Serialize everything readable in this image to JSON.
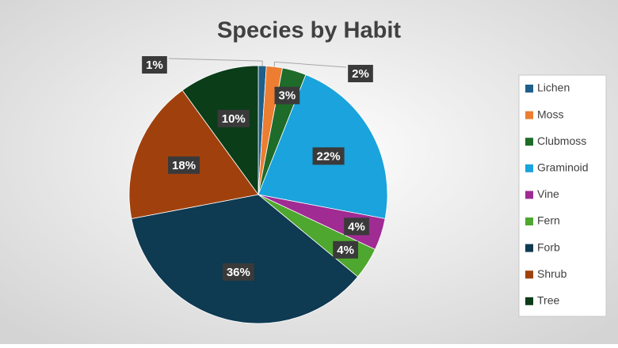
{
  "chart_data": {
    "type": "pie",
    "title": "Species by Habit",
    "categories": [
      "Lichen",
      "Moss",
      "Clubmoss",
      "Graminoid",
      "Vine",
      "Fern",
      "Forb",
      "Shrub",
      "Tree"
    ],
    "values": [
      1,
      2,
      3,
      22,
      4,
      4,
      36,
      18,
      10
    ],
    "value_labels": [
      "1%",
      "2%",
      "3%",
      "22%",
      "4%",
      "4%",
      "36%",
      "18%",
      "10%"
    ],
    "colors": [
      "#1f5f8b",
      "#ed7d31",
      "#1e6b2a",
      "#1aa3dc",
      "#a02b93",
      "#4ea72e",
      "#0e3a52",
      "#a0410d",
      "#0b3d18"
    ],
    "legend": "right"
  }
}
